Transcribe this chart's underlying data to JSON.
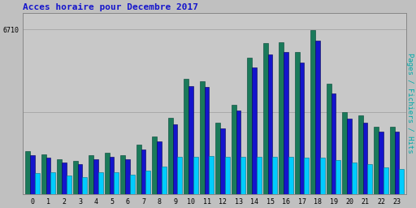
{
  "title": "Acces horaire pour Decembre 2017",
  "ylabel": "Pages / Fichiers / Hits",
  "xlabel_ticks": [
    0,
    1,
    2,
    3,
    4,
    5,
    6,
    7,
    8,
    9,
    10,
    11,
    12,
    13,
    14,
    15,
    16,
    17,
    18,
    19,
    20,
    21,
    22,
    23
  ],
  "ytick_label": "6710",
  "ytick_val": 6710,
  "ymax": 7400,
  "colors": {
    "pages": "#1A7A5A",
    "fichiers": "#1414CC",
    "hits": "#00CCFF",
    "background": "#C0C0C0",
    "plot_bg": "#C8C8C8",
    "title": "#1414CC",
    "ylabel": "#00AAAA",
    "grid": "#AAAAAA"
  },
  "pages": [
    1750,
    1600,
    1420,
    1350,
    1580,
    1680,
    1580,
    2000,
    2350,
    3100,
    4700,
    4600,
    2900,
    3650,
    5550,
    6150,
    6200,
    5800,
    6700,
    4500,
    3350,
    3200,
    2750,
    2750
  ],
  "fichiers": [
    1580,
    1480,
    1280,
    1220,
    1420,
    1520,
    1400,
    1820,
    2150,
    2850,
    4400,
    4380,
    2680,
    3400,
    5150,
    5700,
    5800,
    5380,
    6250,
    4100,
    3080,
    2900,
    2530,
    2530
  ],
  "hits": [
    850,
    870,
    760,
    690,
    870,
    870,
    800,
    960,
    1130,
    1520,
    1530,
    1540,
    1530,
    1520,
    1520,
    1500,
    1500,
    1480,
    1480,
    1380,
    1270,
    1220,
    1070,
    1030
  ]
}
